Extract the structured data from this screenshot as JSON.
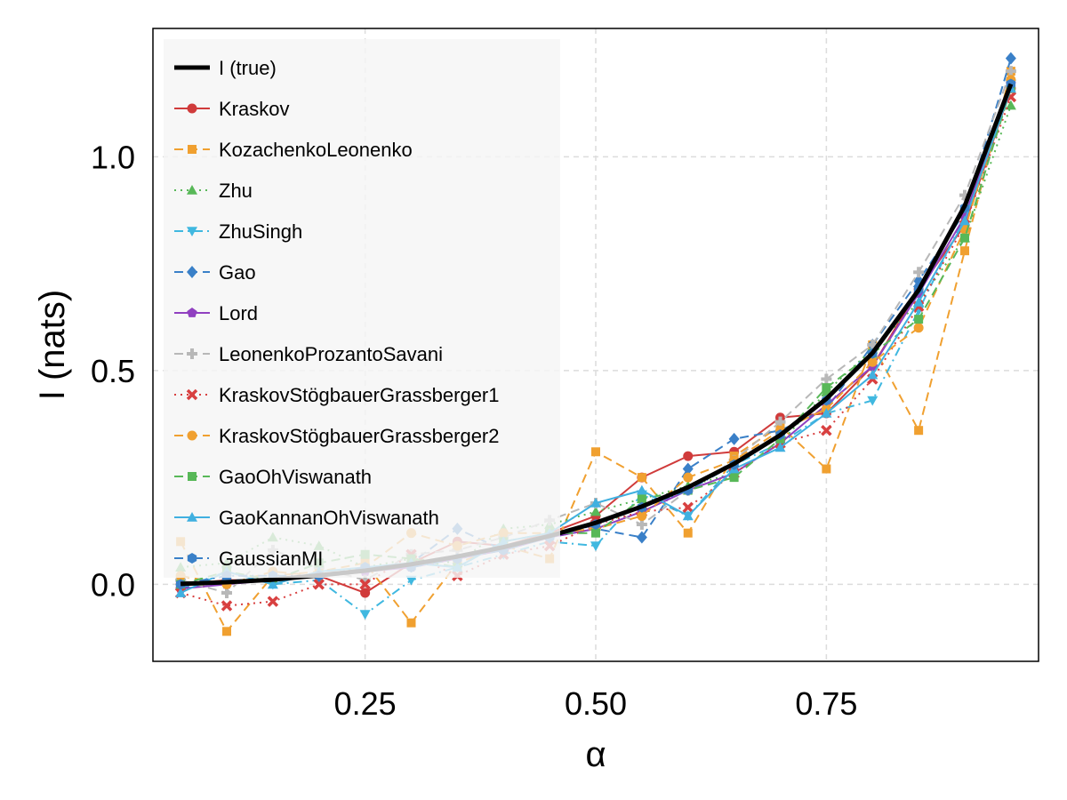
{
  "chart_data": {
    "type": "line",
    "title": "",
    "xlabel": "α",
    "ylabel": "I (nats)",
    "xlim": [
      0.02,
      0.98
    ],
    "ylim": [
      -0.18,
      1.3
    ],
    "xticks": [
      0.25,
      0.5,
      0.75
    ],
    "xtick_labels": [
      "0.25",
      "0.50",
      "0.75"
    ],
    "yticks": [
      0.0,
      0.5,
      1.0
    ],
    "ytick_labels": [
      "0.0",
      "0.5",
      "1.0"
    ],
    "grid": true,
    "legend_position": "top-left",
    "x": [
      0.05,
      0.1,
      0.15,
      0.2,
      0.25,
      0.3,
      0.35,
      0.4,
      0.45,
      0.5,
      0.55,
      0.6,
      0.65,
      0.7,
      0.75,
      0.8,
      0.85,
      0.9,
      0.95
    ],
    "series": [
      {
        "name": "I (true)",
        "color": "#000000",
        "dash": "solid",
        "marker": "none",
        "width": 5,
        "values": [
          0.001,
          0.005,
          0.011,
          0.021,
          0.032,
          0.047,
          0.065,
          0.087,
          0.113,
          0.144,
          0.182,
          0.227,
          0.282,
          0.349,
          0.434,
          0.541,
          0.688,
          0.885,
          1.17
        ]
      },
      {
        "name": "Kraskov",
        "color": "#d03b3b",
        "dash": "solid",
        "marker": "circle",
        "values": [
          0.0,
          0.01,
          0.01,
          0.02,
          -0.02,
          0.05,
          0.1,
          0.09,
          0.12,
          0.16,
          0.25,
          0.3,
          0.31,
          0.39,
          0.4,
          0.51,
          0.69,
          0.84,
          1.16
        ]
      },
      {
        "name": "KozachenkoLeonenko",
        "color": "#f0a030",
        "dash": "dashed",
        "marker": "square",
        "values": [
          0.1,
          -0.11,
          0.02,
          0.03,
          0.05,
          -0.09,
          0.05,
          0.09,
          0.06,
          0.31,
          0.25,
          0.12,
          0.3,
          0.37,
          0.27,
          0.56,
          0.36,
          0.78,
          1.2
        ]
      },
      {
        "name": "Zhu",
        "color": "#58b858",
        "dash": "dotted",
        "marker": "triangle",
        "values": [
          0.04,
          0.05,
          0.11,
          0.09,
          0.04,
          0.06,
          0.05,
          0.13,
          0.14,
          0.17,
          0.2,
          0.23,
          0.26,
          0.33,
          0.45,
          0.55,
          0.66,
          0.81,
          1.12
        ]
      },
      {
        "name": "ZhuSingh",
        "color": "#40b8e0",
        "dash": "dashdot",
        "marker": "triangle-down",
        "values": [
          -0.01,
          0.03,
          0.0,
          0.01,
          -0.07,
          0.01,
          0.04,
          0.07,
          0.1,
          0.09,
          0.21,
          0.16,
          0.28,
          0.33,
          0.4,
          0.43,
          0.64,
          0.86,
          1.17
        ]
      },
      {
        "name": "Gao",
        "color": "#3a80c8",
        "dash": "dashed",
        "marker": "diamond",
        "values": [
          -0.01,
          0.01,
          0.01,
          0.02,
          0.03,
          0.05,
          0.13,
          0.08,
          0.11,
          0.13,
          0.11,
          0.27,
          0.34,
          0.36,
          0.41,
          0.56,
          0.71,
          0.87,
          1.23
        ]
      },
      {
        "name": "Lord",
        "color": "#9040c0",
        "dash": "solid",
        "marker": "pentagon",
        "values": [
          -0.01,
          0.0,
          0.01,
          0.02,
          0.03,
          0.04,
          0.06,
          0.08,
          0.11,
          0.13,
          0.17,
          0.22,
          0.26,
          0.33,
          0.42,
          0.51,
          0.68,
          0.86,
          1.17
        ]
      },
      {
        "name": "LeonenkoProzantoSavani",
        "color": "#b8b8b8",
        "dash": "dashed",
        "marker": "cross",
        "values": [
          0.01,
          -0.02,
          0.08,
          0.04,
          0.01,
          0.07,
          0.08,
          0.11,
          0.15,
          0.19,
          0.14,
          0.22,
          0.29,
          0.38,
          0.48,
          0.56,
          0.73,
          0.91,
          1.2
        ]
      },
      {
        "name": "KraskovStögbauerGrassberger1",
        "color": "#d84040",
        "dash": "dotted",
        "marker": "x",
        "values": [
          -0.02,
          -0.05,
          -0.04,
          0.0,
          0.0,
          0.07,
          0.02,
          0.07,
          0.09,
          0.14,
          0.17,
          0.18,
          0.26,
          0.33,
          0.36,
          0.48,
          0.65,
          0.84,
          1.14
        ]
      },
      {
        "name": "KraskovStögbauerGrassberger2",
        "color": "#f0a030",
        "dash": "dashed",
        "marker": "circle",
        "values": [
          0.02,
          0.0,
          0.03,
          0.02,
          0.04,
          0.12,
          0.09,
          0.12,
          0.12,
          0.13,
          0.16,
          0.25,
          0.29,
          0.36,
          0.41,
          0.52,
          0.6,
          0.83,
          1.18
        ]
      },
      {
        "name": "GaoOhViswanath",
        "color": "#58b858",
        "dash": "dashed",
        "marker": "square",
        "values": [
          0.0,
          0.03,
          0.01,
          0.05,
          0.07,
          0.06,
          0.04,
          0.1,
          0.12,
          0.12,
          0.2,
          0.22,
          0.25,
          0.34,
          0.46,
          0.54,
          0.62,
          0.81,
          1.16
        ]
      },
      {
        "name": "GaoKannanOhViswanath",
        "color": "#40b0e0",
        "dash": "solid",
        "marker": "triangle",
        "values": [
          -0.02,
          0.03,
          0.0,
          0.03,
          0.04,
          0.05,
          0.04,
          0.1,
          0.12,
          0.19,
          0.22,
          0.16,
          0.27,
          0.32,
          0.4,
          0.49,
          0.66,
          0.85,
          1.16
        ]
      },
      {
        "name": "GaussianMI",
        "color": "#3a80c8",
        "dash": "dashdot",
        "marker": "hexagon",
        "values": [
          0.0,
          0.02,
          0.02,
          0.02,
          0.04,
          0.04,
          0.06,
          0.08,
          0.11,
          0.14,
          0.18,
          0.22,
          0.28,
          0.35,
          0.43,
          0.54,
          0.69,
          0.88,
          1.17
        ]
      }
    ]
  }
}
